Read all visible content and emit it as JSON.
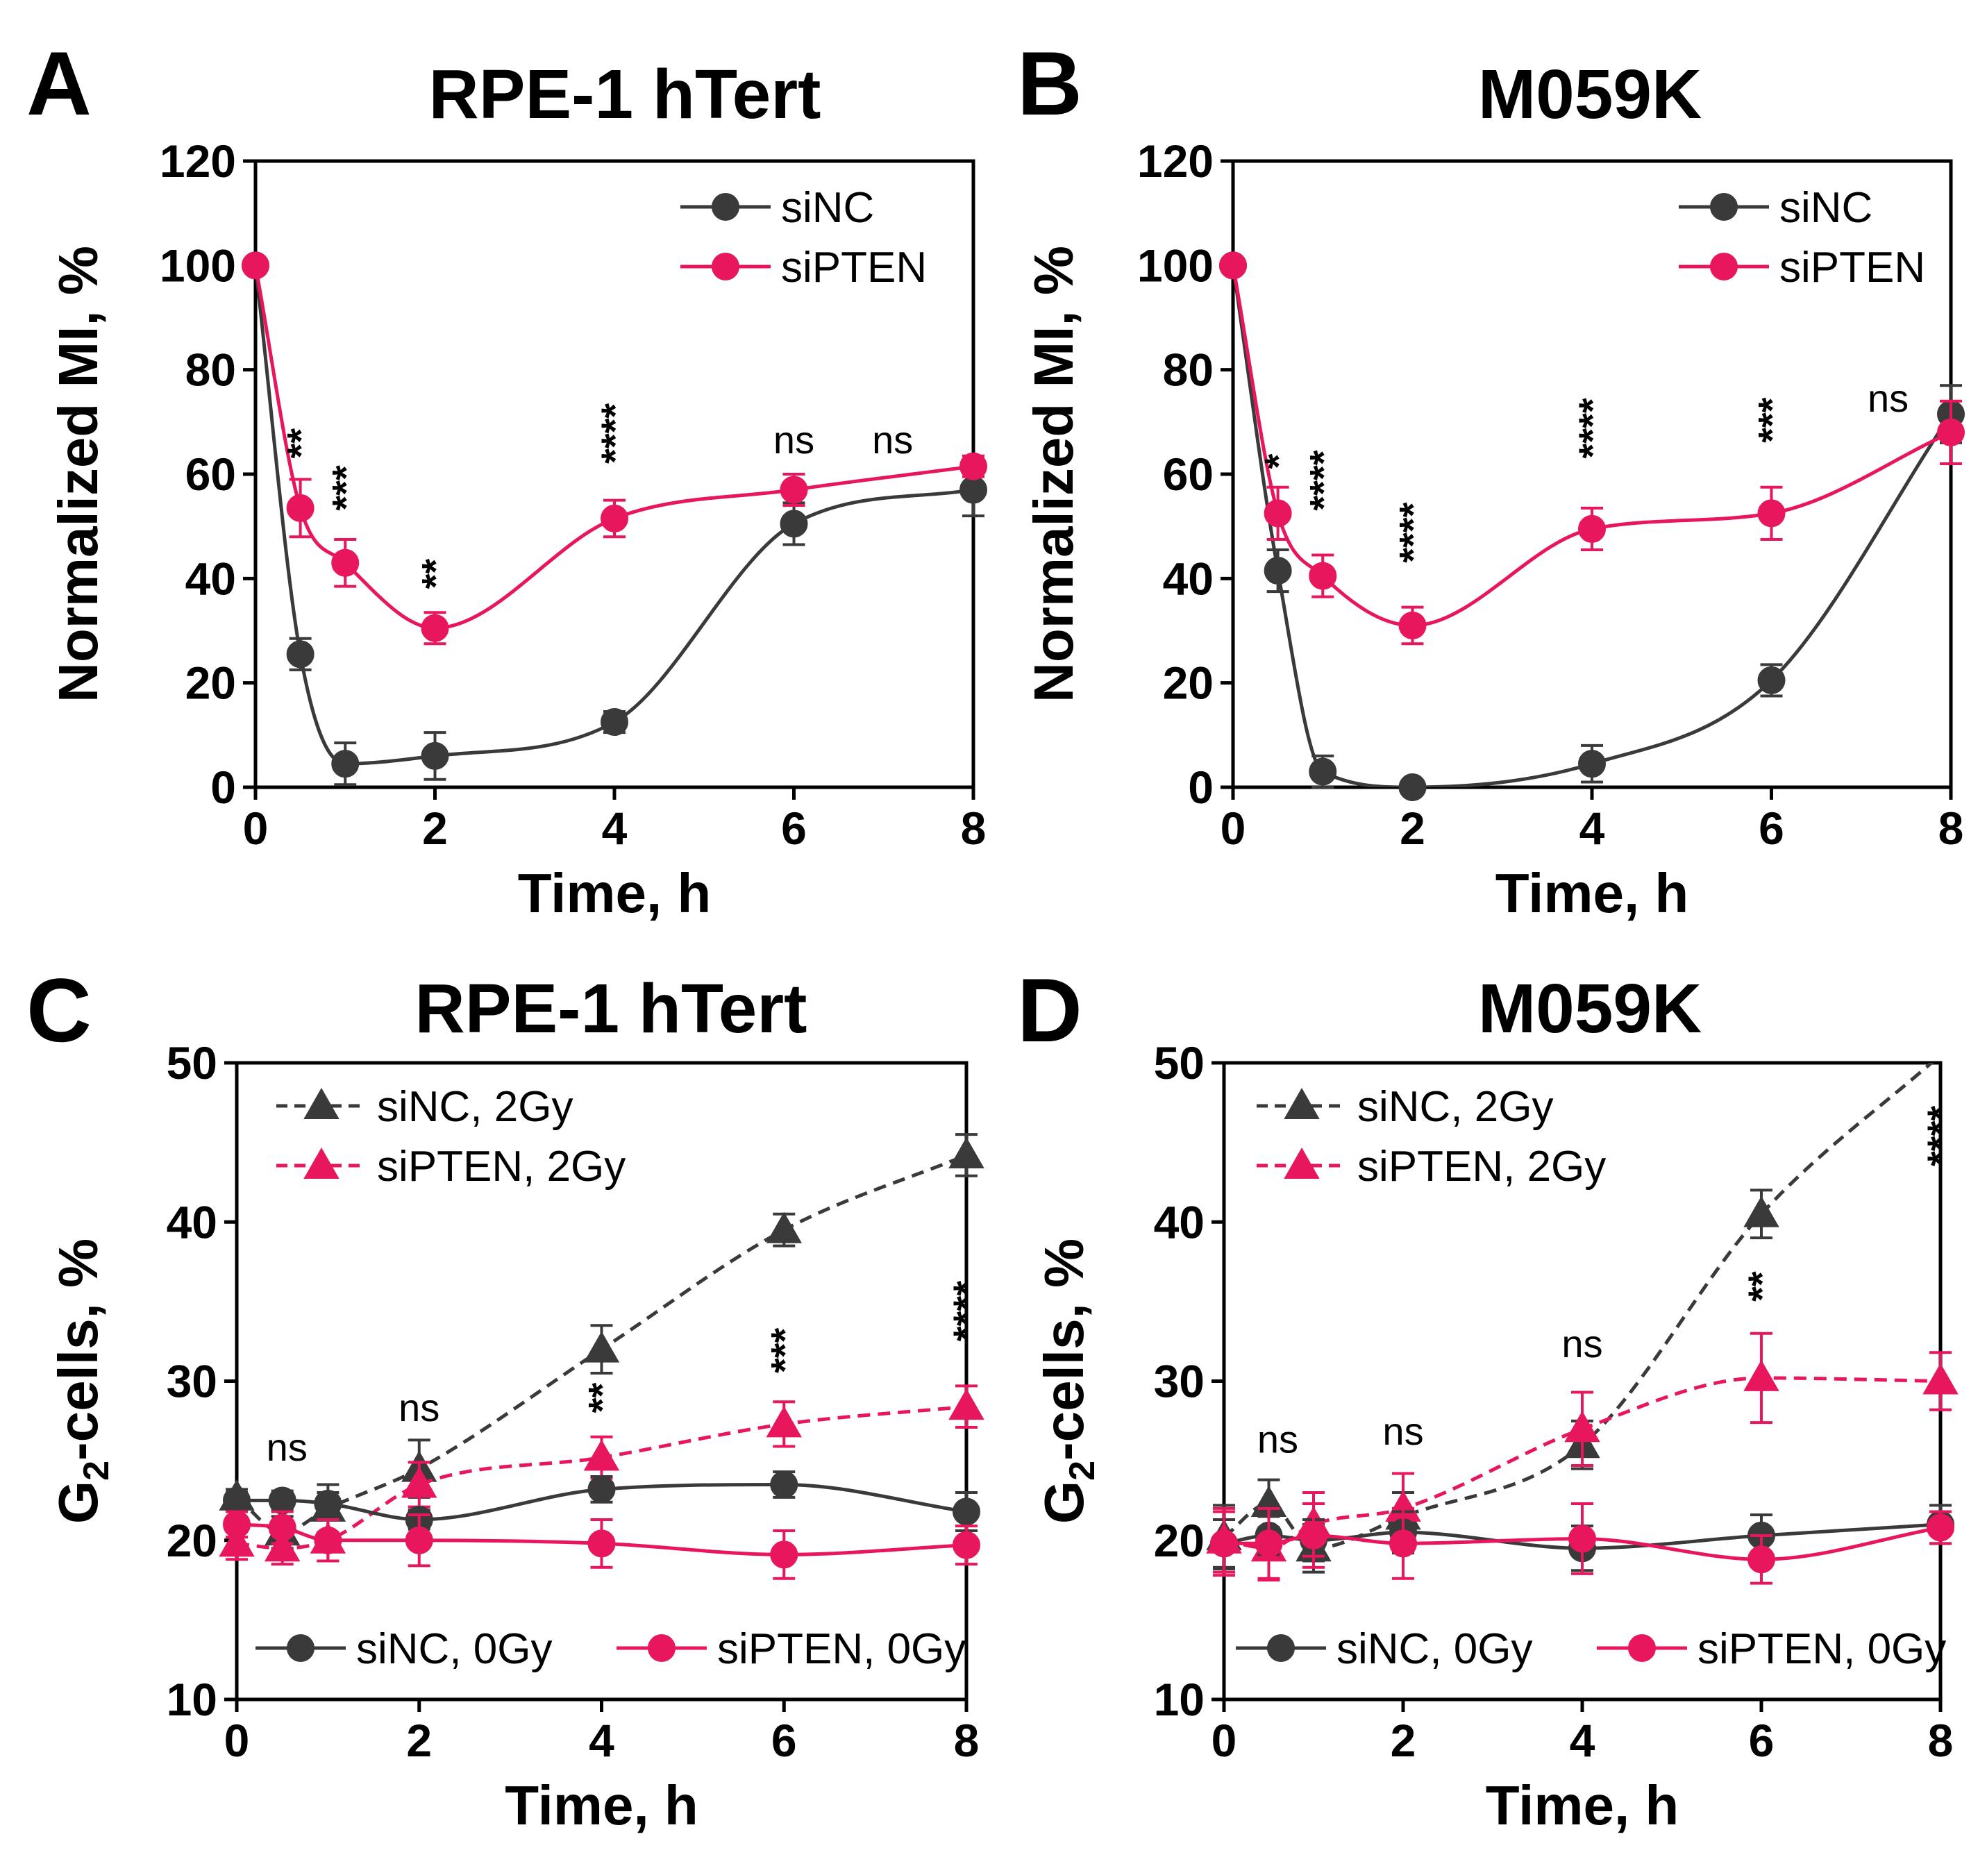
{
  "colors": {
    "siNC": "#3a3a3a",
    "siPTEN": "#e8175d"
  },
  "chart_data": [
    {
      "id": "A",
      "type": "line",
      "panel_label": "A",
      "title": "RPE-1 hTert",
      "xlabel": "Time, h",
      "ylabel": "Normalized MI, %",
      "xlim": [
        0,
        8
      ],
      "ylim": [
        0,
        120
      ],
      "xticks": [
        0,
        2,
        4,
        6,
        8
      ],
      "yticks": [
        0,
        20,
        40,
        60,
        80,
        100,
        120
      ],
      "legend": {
        "position": "top-right",
        "entries": [
          "siNC",
          "siPTEN"
        ]
      },
      "series": [
        {
          "name": "siNC",
          "color": "#3a3a3a",
          "marker": "circle",
          "dash": "solid",
          "x": [
            0,
            0.5,
            1,
            2,
            4,
            6,
            8
          ],
          "y": [
            100,
            25.5,
            4.5,
            6,
            12.5,
            50.5,
            57
          ],
          "err": [
            0,
            3,
            4,
            4.5,
            2,
            4,
            5
          ]
        },
        {
          "name": "siPTEN",
          "color": "#e8175d",
          "marker": "circle",
          "dash": "solid",
          "x": [
            0,
            0.5,
            1,
            2,
            4,
            6,
            8
          ],
          "y": [
            100,
            53.5,
            43,
            30.5,
            51.5,
            57,
            61.5
          ],
          "err": [
            0,
            5.5,
            4.5,
            3,
            3.5,
            3,
            2
          ]
        }
      ],
      "annotations": [
        {
          "x": 0.5,
          "y": 63,
          "text": "**",
          "kind": "stars"
        },
        {
          "x": 1,
          "y": 53,
          "text": "***",
          "kind": "stars"
        },
        {
          "x": 2,
          "y": 38,
          "text": "**",
          "kind": "stars"
        },
        {
          "x": 4,
          "y": 62,
          "text": "****",
          "kind": "stars"
        },
        {
          "x": 6,
          "y": 64,
          "text": "ns",
          "kind": "ns"
        },
        {
          "x": 7.1,
          "y": 64,
          "text": "ns",
          "kind": "ns"
        }
      ]
    },
    {
      "id": "B",
      "type": "line",
      "panel_label": "B",
      "title": "M059K",
      "xlabel": "Time, h",
      "ylabel": "Normalized MI, %",
      "xlim": [
        0,
        8
      ],
      "ylim": [
        0,
        120
      ],
      "xticks": [
        0,
        2,
        4,
        6,
        8
      ],
      "yticks": [
        0,
        20,
        40,
        60,
        80,
        100,
        120
      ],
      "legend": {
        "position": "top-right",
        "entries": [
          "siNC",
          "siPTEN"
        ]
      },
      "series": [
        {
          "name": "siNC",
          "color": "#3a3a3a",
          "marker": "circle",
          "dash": "solid",
          "x": [
            0,
            0.5,
            1,
            2,
            4,
            6,
            8
          ],
          "y": [
            100,
            41.5,
            3,
            0,
            4.5,
            20.5,
            71.5
          ],
          "err": [
            0,
            4,
            3,
            1,
            3.5,
            3,
            5.5
          ]
        },
        {
          "name": "siPTEN",
          "color": "#e8175d",
          "marker": "circle",
          "dash": "solid",
          "x": [
            0,
            0.5,
            1,
            2,
            4,
            6,
            8
          ],
          "y": [
            100,
            52.5,
            40.5,
            31,
            49.5,
            52.5,
            68
          ],
          "err": [
            0,
            5,
            4,
            3.5,
            4,
            5,
            6
          ]
        }
      ],
      "annotations": [
        {
          "x": 0.5,
          "y": 61,
          "text": "*",
          "kind": "stars"
        },
        {
          "x": 1,
          "y": 53,
          "text": "****",
          "kind": "stars"
        },
        {
          "x": 2,
          "y": 43,
          "text": "****",
          "kind": "stars"
        },
        {
          "x": 4,
          "y": 63,
          "text": "****",
          "kind": "stars"
        },
        {
          "x": 6,
          "y": 66,
          "text": "***",
          "kind": "stars"
        },
        {
          "x": 7.3,
          "y": 72,
          "text": "ns",
          "kind": "ns"
        }
      ]
    },
    {
      "id": "C",
      "type": "line",
      "panel_label": "C",
      "title": "RPE-1 hTert",
      "xlabel": "Time, h",
      "ylabel_main": "G",
      "ylabel_sub": "2",
      "ylabel_rest": "-cells, %",
      "xlim": [
        0,
        8
      ],
      "ylim": [
        10,
        50
      ],
      "xticks": [
        0,
        2,
        4,
        6,
        8
      ],
      "yticks": [
        10,
        20,
        30,
        40,
        50
      ],
      "legend": {
        "position": "top-left",
        "entries": [
          "siNC, 2Gy",
          "siPTEN, 2Gy"
        ]
      },
      "legend2": {
        "position": "bottom",
        "entries": [
          "siNC, 0Gy",
          "siPTEN, 0Gy"
        ]
      },
      "series": [
        {
          "name": "siNC, 2Gy",
          "color": "#3a3a3a",
          "marker": "triangle",
          "dash": "dashed",
          "x": [
            0,
            0.5,
            1,
            2,
            4,
            6,
            8
          ],
          "y": [
            22.7,
            20.5,
            22,
            24.5,
            32,
            39.5,
            44.2
          ],
          "err": [
            0.5,
            1,
            1.5,
            1.8,
            1.5,
            1,
            1.3
          ]
        },
        {
          "name": "siPTEN, 2Gy",
          "color": "#e8175d",
          "marker": "triangle",
          "dash": "dashed",
          "x": [
            0,
            0.5,
            1,
            2,
            4,
            6,
            8
          ],
          "y": [
            19.8,
            19.5,
            20,
            23.5,
            25.2,
            27.3,
            28.4
          ],
          "err": [
            1,
            1,
            1.3,
            1.4,
            1.3,
            1.4,
            1.3
          ]
        },
        {
          "name": "siNC, 0Gy",
          "color": "#3a3a3a",
          "marker": "circle",
          "dash": "solid",
          "x": [
            0,
            0.5,
            1,
            2,
            4,
            6,
            8
          ],
          "y": [
            22.5,
            22.5,
            22.3,
            21.3,
            23.2,
            23.5,
            21.8
          ],
          "err": [
            0.5,
            0.6,
            0.7,
            0.6,
            0.8,
            0.8,
            1.2
          ]
        },
        {
          "name": "siPTEN, 0Gy",
          "color": "#e8175d",
          "marker": "circle",
          "dash": "solid",
          "x": [
            0,
            0.5,
            1,
            2,
            4,
            6,
            8
          ],
          "y": [
            21,
            20.8,
            20,
            20,
            19.8,
            19.1,
            19.7
          ],
          "err": [
            0.8,
            1,
            1.3,
            1.6,
            1.5,
            1.5,
            1.2
          ]
        }
      ],
      "annotations": [
        {
          "x": 0.55,
          "y": 25,
          "text": "ns",
          "kind": "ns"
        },
        {
          "x": 2,
          "y": 27.5,
          "text": "ns",
          "kind": "ns"
        },
        {
          "x": 4,
          "y": 28,
          "text": "**",
          "kind": "stars"
        },
        {
          "x": 6,
          "y": 30.5,
          "text": "***",
          "kind": "stars"
        },
        {
          "x": 8,
          "y": 32.5,
          "text": "****",
          "kind": "stars"
        }
      ]
    },
    {
      "id": "D",
      "type": "line",
      "panel_label": "D",
      "title": "M059K",
      "xlabel": "Time, h",
      "ylabel_main": "G",
      "ylabel_sub": "2",
      "ylabel_rest": "-cells, %",
      "xlim": [
        0,
        8
      ],
      "ylim": [
        10,
        50
      ],
      "xticks": [
        0,
        2,
        4,
        6,
        8
      ],
      "yticks": [
        10,
        20,
        30,
        40,
        50
      ],
      "legend": {
        "position": "top-left",
        "entries": [
          "siNC, 2Gy",
          "siPTEN, 2Gy"
        ]
      },
      "legend2": {
        "position": "bottom",
        "entries": [
          "siNC, 0Gy",
          "siPTEN, 0Gy"
        ]
      },
      "series": [
        {
          "name": "siNC, 2Gy",
          "color": "#3a3a3a",
          "marker": "triangle",
          "dash": "dashed",
          "x": [
            0,
            0.5,
            1,
            2,
            4,
            6,
            8
          ],
          "y": [
            20.2,
            22.3,
            19.5,
            21.5,
            26,
            40.5,
            50.5
          ],
          "err": [
            2,
            1.5,
            1.5,
            1.5,
            1.5,
            1.5,
            0
          ],
          "extend_to": 8.25
        },
        {
          "name": "siPTEN, 2Gy",
          "color": "#e8175d",
          "marker": "triangle",
          "dash": "dashed",
          "x": [
            0,
            0.5,
            1,
            2,
            4,
            6,
            8
          ],
          "y": [
            20,
            19.5,
            21,
            22,
            27,
            30.2,
            30
          ],
          "err": [
            2,
            2,
            2,
            2.2,
            2.3,
            2.8,
            1.8
          ]
        },
        {
          "name": "siNC, 0Gy",
          "color": "#3a3a3a",
          "marker": "circle",
          "dash": "solid",
          "x": [
            0,
            0.5,
            1,
            2,
            4,
            6,
            8
          ],
          "y": [
            19.8,
            20.3,
            20,
            20.5,
            19.5,
            20.3,
            21
          ],
          "err": [
            1.5,
            1.2,
            1.3,
            1.3,
            1.4,
            1.3,
            1.2
          ]
        },
        {
          "name": "siPTEN, 0Gy",
          "color": "#e8175d",
          "marker": "circle",
          "dash": "solid",
          "x": [
            0,
            0.5,
            1,
            2,
            4,
            6,
            8
          ],
          "y": [
            19.8,
            19.8,
            20.3,
            19.8,
            20.1,
            18.8,
            20.8
          ],
          "err": [
            2,
            2.2,
            2,
            2.2,
            2.2,
            1.5,
            1
          ]
        }
      ],
      "annotations": [
        {
          "x": 0.6,
          "y": 25.5,
          "text": "ns",
          "kind": "ns"
        },
        {
          "x": 2,
          "y": 26,
          "text": "ns",
          "kind": "ns"
        },
        {
          "x": 4,
          "y": 31.5,
          "text": "ns",
          "kind": "ns"
        },
        {
          "x": 6,
          "y": 35,
          "text": "**",
          "kind": "stars"
        },
        {
          "x": 8,
          "y": 43.5,
          "text": "****",
          "kind": "stars"
        }
      ]
    }
  ]
}
